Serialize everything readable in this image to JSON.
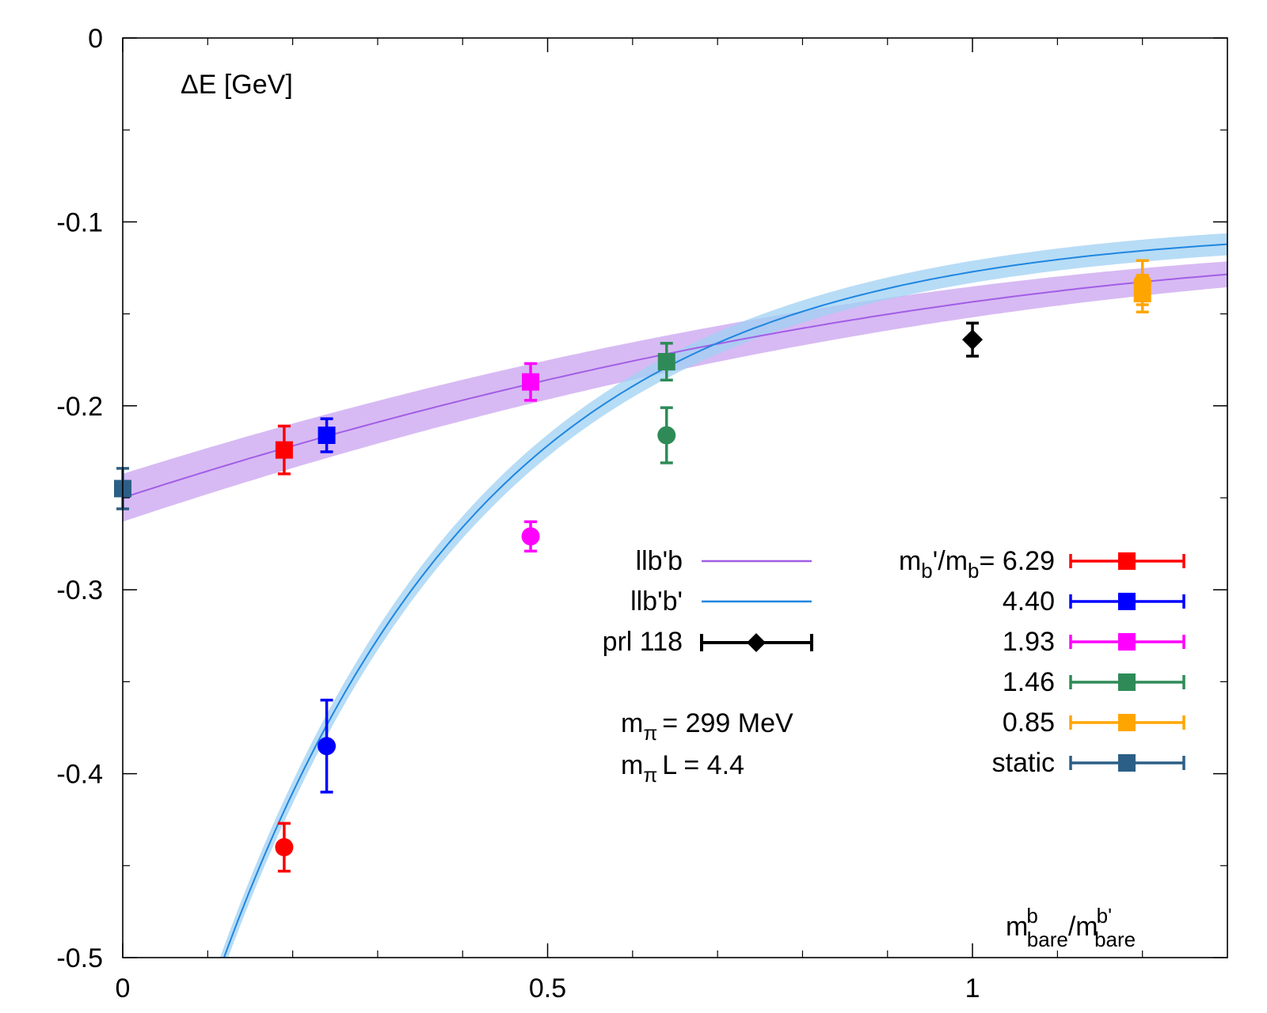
{
  "chart_data": {
    "type": "scatter",
    "xlabel": "m_bare^b/m_bare^b'",
    "xlabel_parts": {
      "m": "m",
      "sup1": "b",
      "sub1": "bare",
      "slash": "/m",
      "sup2": "b'",
      "sub2": "bare"
    },
    "ylabel": "ΔE [GeV]",
    "xlim": [
      0,
      1.3
    ],
    "ylim": [
      -0.5,
      0
    ],
    "grid": false,
    "x_ticks": [
      {
        "value": 0,
        "label": "0"
      },
      {
        "value": 0.5,
        "label": "0.5"
      },
      {
        "value": 1,
        "label": "1"
      }
    ],
    "y_ticks": [
      {
        "value": 0,
        "label": "0"
      },
      {
        "value": -0.1,
        "label": "-0.1"
      },
      {
        "value": -0.2,
        "label": "-0.2"
      },
      {
        "value": -0.3,
        "label": "-0.3"
      },
      {
        "value": -0.4,
        "label": "-0.4"
      },
      {
        "value": -0.5,
        "label": "-0.5"
      }
    ],
    "fits": [
      {
        "name": "llb'b",
        "label": "llb'b",
        "color": "#a25ee6",
        "band_color": "#c9a3ef",
        "model": "A + B*x + C*x^2",
        "params": {
          "A": -0.25,
          "B": 0.15,
          "C": -0.0435
        },
        "band_halfwidth_at_0": 0.013,
        "band_halfwidth_at_end": 0.007
      },
      {
        "name": "llb'b'",
        "label": "llb'b'",
        "color": "#1f86e0",
        "band_color": "#9fd0f3",
        "model": "A + B*exp(-x/t)",
        "params": {
          "A": -0.1027,
          "B": -0.5794,
          "t": 0.3158
        },
        "band_halfwidth": 0.006
      }
    ],
    "series": [
      {
        "name": "6.29",
        "color": "#ff0000",
        "points": [
          {
            "x": 0.19,
            "y": -0.224,
            "err": 0.013,
            "marker": "square"
          },
          {
            "x": 0.19,
            "y": -0.44,
            "err": 0.013,
            "marker": "circle"
          }
        ]
      },
      {
        "name": "4.40",
        "color": "#0000ff",
        "points": [
          {
            "x": 0.24,
            "y": -0.216,
            "err": 0.009,
            "marker": "square"
          },
          {
            "x": 0.24,
            "y": -0.385,
            "err": 0.025,
            "marker": "circle"
          }
        ]
      },
      {
        "name": "1.93",
        "color": "#ff00ff",
        "points": [
          {
            "x": 0.48,
            "y": -0.187,
            "err": 0.01,
            "marker": "square"
          },
          {
            "x": 0.48,
            "y": -0.271,
            "err": 0.008,
            "marker": "circle"
          }
        ]
      },
      {
        "name": "1.46",
        "color": "#2e8b57",
        "points": [
          {
            "x": 0.64,
            "y": -0.176,
            "err": 0.01,
            "marker": "square"
          },
          {
            "x": 0.64,
            "y": -0.216,
            "err": 0.015,
            "marker": "circle"
          }
        ]
      },
      {
        "name": "0.85",
        "color": "#ffa500",
        "points": [
          {
            "x": 1.2,
            "y": -0.139,
            "err": 0.01,
            "marker": "square"
          },
          {
            "x": 1.2,
            "y": -0.133,
            "err": 0.012,
            "marker": "circle"
          }
        ]
      },
      {
        "name": "static",
        "color": "#2c5f86",
        "points": [
          {
            "x": 0.0,
            "y": -0.245,
            "err": 0.011,
            "marker": "square"
          }
        ]
      },
      {
        "name": "prl 118",
        "color": "#000000",
        "points": [
          {
            "x": 1.0,
            "y": -0.164,
            "err": 0.009,
            "marker": "diamond"
          }
        ]
      }
    ],
    "legend_fits": {
      "items": [
        {
          "label": "llb'b",
          "color": "#a25ee6"
        },
        {
          "label": "llb'b'",
          "color": "#1f86e0"
        }
      ],
      "prl": {
        "label": "prl 118",
        "color": "#000000"
      }
    },
    "legend_ratios": {
      "header_prefix": "m",
      "header_sub1": "b",
      "header_mid": "'/m",
      "header_sub2": "b",
      "header_eq": "= ",
      "items": [
        {
          "label": "6.29",
          "color": "#ff0000"
        },
        {
          "label": "4.40",
          "color": "#0000ff"
        },
        {
          "label": "1.93",
          "color": "#ff00ff"
        },
        {
          "label": "1.46",
          "color": "#2e8b57"
        },
        {
          "label": "0.85",
          "color": "#ffa500"
        },
        {
          "label": "static",
          "color": "#2c5f86"
        }
      ]
    },
    "annotations": {
      "mpi_sym": "m",
      "mpi_sub": "π",
      "mpi_value": "= 299 MeV",
      "mpiL_sym": "m",
      "mpiL_sub": "π",
      "mpiL_value": "L = 4.4"
    }
  }
}
